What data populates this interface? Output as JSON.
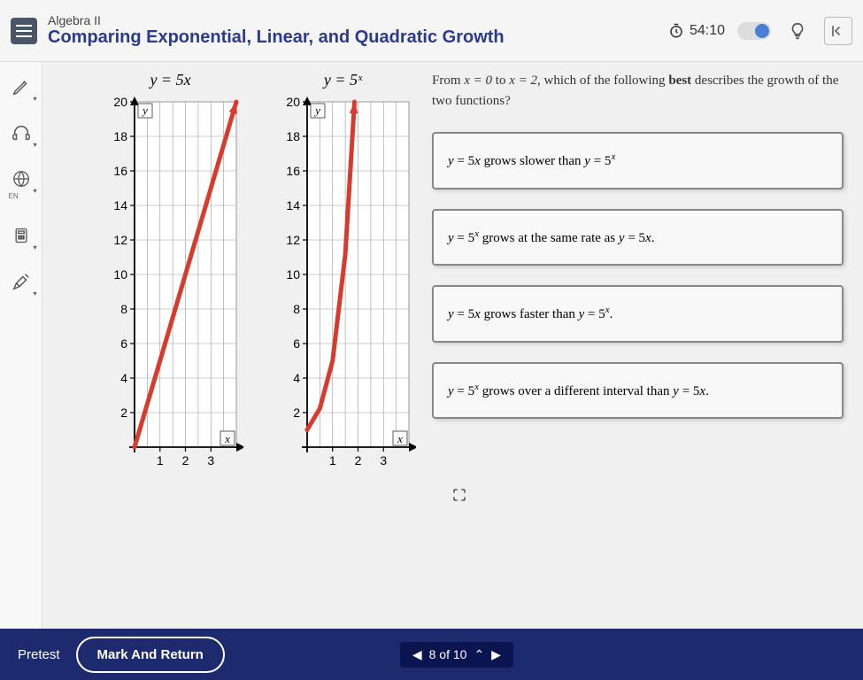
{
  "header": {
    "course": "Algebra II",
    "title": "Comparing Exponential, Linear, and Quadratic Growth",
    "timer": "54:10"
  },
  "sidebar": {
    "en_label": "EN"
  },
  "chart1": {
    "title": "y = 5x",
    "type": "line",
    "x_axis_label": "x",
    "y_axis_label": "y",
    "yticks": [
      2,
      4,
      6,
      8,
      10,
      12,
      14,
      16,
      18,
      20
    ],
    "xticks": [
      1,
      2,
      3
    ],
    "ylim": [
      0,
      20
    ],
    "xlim": [
      0,
      4
    ],
    "line_color": "#d83a2e",
    "grid_color": "#999999",
    "axis_color": "#000000",
    "background_color": "#ffffff",
    "points": [
      [
        0,
        0
      ],
      [
        4,
        20
      ]
    ]
  },
  "chart2": {
    "title": "y = 5ˣ",
    "type": "line",
    "x_axis_label": "x",
    "y_axis_label": "y",
    "yticks": [
      2,
      4,
      6,
      8,
      10,
      12,
      14,
      16,
      18,
      20
    ],
    "xticks": [
      1,
      2,
      3
    ],
    "ylim": [
      0,
      20
    ],
    "xlim": [
      0,
      4
    ],
    "line_color": "#d83a2e",
    "grid_color": "#999999",
    "axis_color": "#000000",
    "background_color": "#ffffff",
    "points": [
      [
        0,
        1
      ],
      [
        0.5,
        2.24
      ],
      [
        1,
        5
      ],
      [
        1.5,
        11.18
      ],
      [
        1.86,
        20
      ]
    ]
  },
  "question": {
    "prompt_pre": "From ",
    "prompt_eq1": "x = 0",
    "prompt_mid": " to ",
    "prompt_eq2": "x = 2",
    "prompt_post": ", which of the following ",
    "prompt_bold": "best",
    "prompt_end": " describes the growth of the two functions?"
  },
  "answers": {
    "a1": "y = 5x grows slower than y = 5ˣ",
    "a2": "y = 5ˣ grows at the same rate as y = 5x.",
    "a3": "y = 5x grows faster than y = 5ˣ.",
    "a4": "y = 5ˣ grows over a different interval than y = 5x."
  },
  "footer": {
    "pretest": "Pretest",
    "mark": "Mark And Return",
    "pager_text": "8 of 10"
  },
  "colors": {
    "header_title": "#2a3a8f",
    "footer_bg": "#1e2a6e",
    "answer_border": "#888888"
  }
}
